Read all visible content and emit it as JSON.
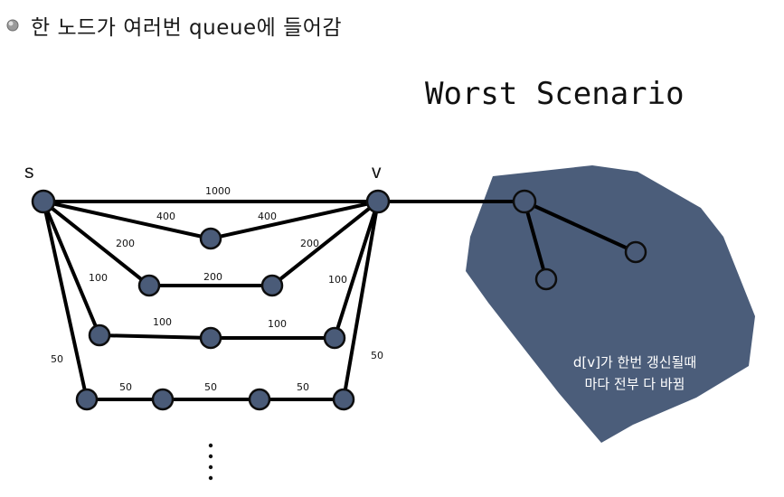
{
  "bullet": {
    "icon": "bullet-disc-icon",
    "text": "한 노드가 여러번 queue에 들어감"
  },
  "headline": "Worst Scenario",
  "graph": {
    "source_label": "s",
    "target_label": "v",
    "weights": {
      "top": "1000",
      "upper_left": "400",
      "upper_right": "400",
      "mid_left": "200",
      "mid_center": "200",
      "mid_right": "200",
      "lower_left": "100",
      "lower_center_left": "100",
      "lower_center_right": "100",
      "lower_right": "100",
      "bottom_side_left": "50",
      "bottom_side_right": "50",
      "bottom_1": "50",
      "bottom_2": "50",
      "bottom_3": "50"
    },
    "ellipsis": "⋮"
  },
  "blob": {
    "line1": "d[v]가 한번 갱신될때",
    "line2": "마다 전부 다 바뀜",
    "color": "#4b5d7a"
  }
}
